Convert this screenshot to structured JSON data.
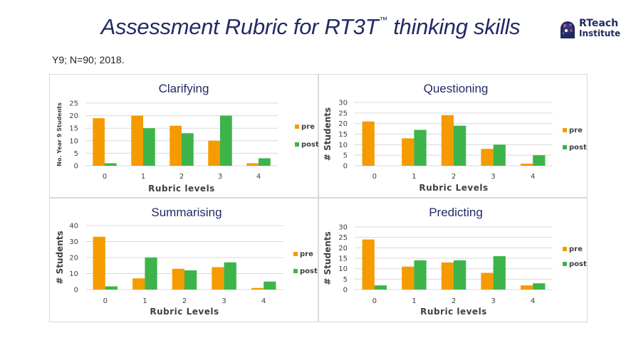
{
  "header": {
    "title": "Assessment Rubric for RT3T",
    "title_mark": "™",
    "title_suffix": " thinking skills",
    "subtitle": "Y9; N=90; 2018.",
    "logo_line1": "RTeach",
    "logo_line2": "Institute"
  },
  "colors": {
    "pre": "#f59b00",
    "post": "#3cb44a",
    "grid": "#d9d9d9",
    "title": "#232a66",
    "text": "#404040"
  },
  "chart_data": [
    {
      "type": "bar",
      "title": "Clarifying",
      "categories": [
        "0",
        "1",
        "2",
        "3",
        "4"
      ],
      "series": [
        {
          "name": "pre",
          "values": [
            19,
            20,
            16,
            10,
            1
          ]
        },
        {
          "name": "post",
          "values": [
            1,
            15,
            13,
            20,
            3
          ]
        }
      ],
      "xlabel": "Rubric levels",
      "ylabel": "No. Year 9 Students",
      "ylim": [
        0,
        25
      ],
      "yticks": [
        0,
        5,
        10,
        15,
        20,
        25
      ],
      "grid": true,
      "legend": "right"
    },
    {
      "type": "bar",
      "title": "Questioning",
      "categories": [
        "0",
        "1",
        "2",
        "3",
        "4"
      ],
      "series": [
        {
          "name": "pre",
          "values": [
            21,
            13,
            24,
            8,
            1
          ]
        },
        {
          "name": "post",
          "values": [
            0,
            17,
            19,
            10,
            5
          ]
        }
      ],
      "xlabel": "Rubric Levels",
      "ylabel": "# Students",
      "ylim": [
        0,
        30
      ],
      "yticks": [
        0,
        5,
        10,
        15,
        20,
        25,
        30
      ],
      "grid": true,
      "legend": "right"
    },
    {
      "type": "bar",
      "title": "Summarising",
      "categories": [
        "0",
        "1",
        "2",
        "3",
        "4"
      ],
      "series": [
        {
          "name": "pre",
          "values": [
            33,
            7,
            13,
            14,
            1
          ]
        },
        {
          "name": "post",
          "values": [
            2,
            20,
            12,
            17,
            5
          ]
        }
      ],
      "xlabel": "Rubric Levels",
      "ylabel": "# Students",
      "ylim": [
        0,
        40
      ],
      "yticks": [
        0,
        10,
        20,
        30,
        40
      ],
      "grid": true,
      "legend": "right"
    },
    {
      "type": "bar",
      "title": "Predicting",
      "categories": [
        "0",
        "1",
        "2",
        "3",
        "4"
      ],
      "series": [
        {
          "name": "pre",
          "values": [
            24,
            11,
            13,
            8,
            2
          ]
        },
        {
          "name": "post",
          "values": [
            2,
            14,
            14,
            16,
            3
          ]
        }
      ],
      "xlabel": "Rubric levels",
      "ylabel": "# Students",
      "ylim": [
        0,
        30
      ],
      "yticks": [
        0,
        5,
        10,
        15,
        20,
        25,
        30
      ],
      "grid": true,
      "legend": "right"
    }
  ]
}
